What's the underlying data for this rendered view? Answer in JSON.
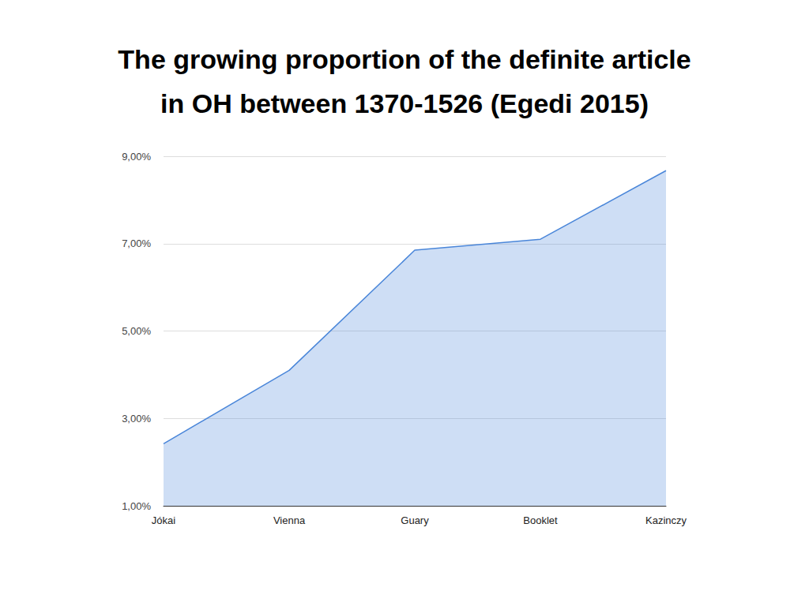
{
  "chart_data": {
    "type": "area",
    "title": "The growing proportion of the definite article\nin OH between 1370-1526 (Egedi 2015)",
    "categories": [
      "Jókai",
      "Vienna",
      "Guary",
      "Booklet",
      "Kazinczy"
    ],
    "values": [
      2.42,
      4.1,
      6.85,
      7.1,
      8.67
    ],
    "color": "#4a86d9",
    "ylim": [
      1,
      9
    ],
    "yticks": [
      {
        "value": 1,
        "label": "1,00%"
      },
      {
        "value": 3,
        "label": "3,00%"
      },
      {
        "value": 5,
        "label": "5,00%"
      },
      {
        "value": 7,
        "label": "7,00%"
      },
      {
        "value": 9,
        "label": "9,00%"
      }
    ],
    "grid": true
  }
}
